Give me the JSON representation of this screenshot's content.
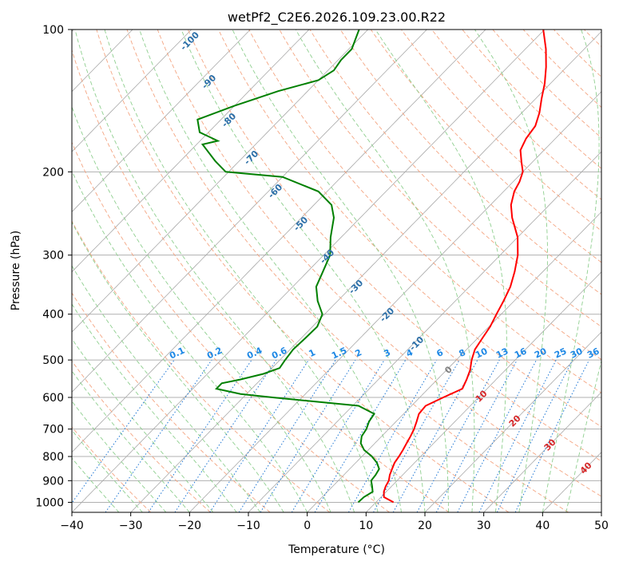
{
  "chart_data": {
    "type": "line",
    "title": "wetPf2_C2E6.2026.109.23.00.R22",
    "xlabel": "Temperature (°C)",
    "ylabel": "Pressure (hPa)",
    "xlim": [
      -40,
      50
    ],
    "ylim": [
      1050,
      100
    ],
    "y_scale": "log",
    "skew": true,
    "x_ticks": [
      -40,
      -30,
      -20,
      -10,
      0,
      10,
      20,
      30,
      40,
      50
    ],
    "y_ticks": [
      100,
      200,
      300,
      400,
      500,
      600,
      700,
      800,
      900,
      1000
    ],
    "grid": true,
    "series": [
      {
        "color": "#ff0000",
        "points": [
          [
            1000,
            13.0
          ],
          [
            975,
            10.5
          ],
          [
            950,
            9.6
          ],
          [
            925,
            9.0
          ],
          [
            900,
            8.6
          ],
          [
            875,
            7.8
          ],
          [
            850,
            7.2
          ],
          [
            825,
            6.6
          ],
          [
            800,
            6.3
          ],
          [
            775,
            5.9
          ],
          [
            750,
            5.4
          ],
          [
            725,
            4.9
          ],
          [
            700,
            4.3
          ],
          [
            675,
            3.5
          ],
          [
            650,
            2.6
          ],
          [
            625,
            2.4
          ],
          [
            600,
            4.0
          ],
          [
            575,
            5.8
          ],
          [
            550,
            5.0
          ],
          [
            525,
            4.0
          ],
          [
            500,
            2.6
          ],
          [
            475,
            1.4
          ],
          [
            450,
            0.8
          ],
          [
            425,
            0.2
          ],
          [
            400,
            -0.8
          ],
          [
            375,
            -1.8
          ],
          [
            350,
            -3.0
          ],
          [
            325,
            -4.8
          ],
          [
            300,
            -7.0
          ],
          [
            275,
            -10.0
          ],
          [
            250,
            -14.2
          ],
          [
            235,
            -16.5
          ],
          [
            220,
            -18.2
          ],
          [
            210,
            -18.9
          ],
          [
            200,
            -20.0
          ],
          [
            190,
            -22.0
          ],
          [
            180,
            -24.0
          ],
          [
            170,
            -25.0
          ],
          [
            160,
            -25.5
          ],
          [
            150,
            -27.0
          ],
          [
            140,
            -29.0
          ],
          [
            130,
            -31.0
          ],
          [
            120,
            -33.5
          ],
          [
            110,
            -36.5
          ],
          [
            100,
            -40.2
          ]
        ]
      },
      {
        "color": "#008000",
        "points": [
          [
            1000,
            7.0
          ],
          [
            975,
            7.1
          ],
          [
            950,
            7.7
          ],
          [
            925,
            6.7
          ],
          [
            900,
            5.6
          ],
          [
            875,
            5.4
          ],
          [
            850,
            5.0
          ],
          [
            825,
            3.6
          ],
          [
            800,
            1.7
          ],
          [
            775,
            -0.7
          ],
          [
            750,
            -2.4
          ],
          [
            725,
            -3.4
          ],
          [
            700,
            -3.8
          ],
          [
            675,
            -4.6
          ],
          [
            650,
            -5.0
          ],
          [
            625,
            -9.0
          ],
          [
            600,
            -25.0
          ],
          [
            590,
            -31.0
          ],
          [
            575,
            -36.0
          ],
          [
            560,
            -36.0
          ],
          [
            550,
            -33.5
          ],
          [
            535,
            -30.5
          ],
          [
            520,
            -28.7
          ],
          [
            500,
            -29.1
          ],
          [
            475,
            -29.5
          ],
          [
            450,
            -29.3
          ],
          [
            425,
            -29.2
          ],
          [
            400,
            -30.4
          ],
          [
            375,
            -33.4
          ],
          [
            350,
            -36.0
          ],
          [
            325,
            -37.4
          ],
          [
            300,
            -38.9
          ],
          [
            275,
            -41.8
          ],
          [
            250,
            -44.5
          ],
          [
            235,
            -47.0
          ],
          [
            220,
            -51.5
          ],
          [
            205,
            -60.0
          ],
          [
            200,
            -70.5
          ],
          [
            190,
            -74.0
          ],
          [
            175,
            -79.0
          ],
          [
            172,
            -77.0
          ],
          [
            165,
            -81.5
          ],
          [
            155,
            -84.0
          ],
          [
            145,
            -80.0
          ],
          [
            135,
            -75.0
          ],
          [
            128,
            -70.0
          ],
          [
            122,
            -69.0
          ],
          [
            116,
            -69.5
          ],
          [
            110,
            -69.5
          ],
          [
            100,
            -71.5
          ]
        ]
      }
    ],
    "reference_lines": {
      "isotherms_dry_adiabats_moist_adiabats_mixing_ratio": true
    },
    "annotations": [
      {
        "text": "0.1",
        "group": "mixing_ratio"
      },
      {
        "text": "0.2",
        "group": "mixing_ratio"
      },
      {
        "text": "0.4",
        "group": "mixing_ratio"
      },
      {
        "text": "0.6",
        "group": "mixing_ratio"
      },
      {
        "text": "1",
        "group": "mixing_ratio"
      },
      {
        "text": "1.5",
        "group": "mixing_ratio"
      },
      {
        "text": "2",
        "group": "mixing_ratio"
      },
      {
        "text": "3",
        "group": "mixing_ratio"
      },
      {
        "text": "4",
        "group": "mixing_ratio"
      },
      {
        "text": "6",
        "group": "mixing_ratio"
      },
      {
        "text": "8",
        "group": "mixing_ratio"
      },
      {
        "text": "10",
        "group": "mixing_ratio"
      },
      {
        "text": "13",
        "group": "mixing_ratio"
      },
      {
        "text": "16",
        "group": "mixing_ratio"
      },
      {
        "text": "20",
        "group": "mixing_ratio"
      },
      {
        "text": "25",
        "group": "mixing_ratio"
      },
      {
        "text": "30",
        "group": "mixing_ratio"
      },
      {
        "text": "36",
        "group": "mixing_ratio"
      },
      {
        "text": "-100",
        "group": "isotherm"
      },
      {
        "text": "-90",
        "group": "isotherm"
      },
      {
        "text": "-80",
        "group": "isotherm"
      },
      {
        "text": "-70",
        "group": "isotherm"
      },
      {
        "text": "-60",
        "group": "isotherm"
      },
      {
        "text": "-50",
        "group": "isotherm"
      },
      {
        "text": "-40",
        "group": "isotherm"
      },
      {
        "text": "-30",
        "group": "isotherm"
      },
      {
        "text": "-20",
        "group": "isotherm"
      },
      {
        "text": "-10",
        "group": "isotherm"
      },
      {
        "text": "0",
        "group": "isotherm_zero"
      },
      {
        "text": "10",
        "group": "isotherm_warm"
      },
      {
        "text": "20",
        "group": "isotherm_warm"
      },
      {
        "text": "30",
        "group": "isotherm_warm"
      },
      {
        "text": "40",
        "group": "isotherm_warm"
      }
    ]
  }
}
